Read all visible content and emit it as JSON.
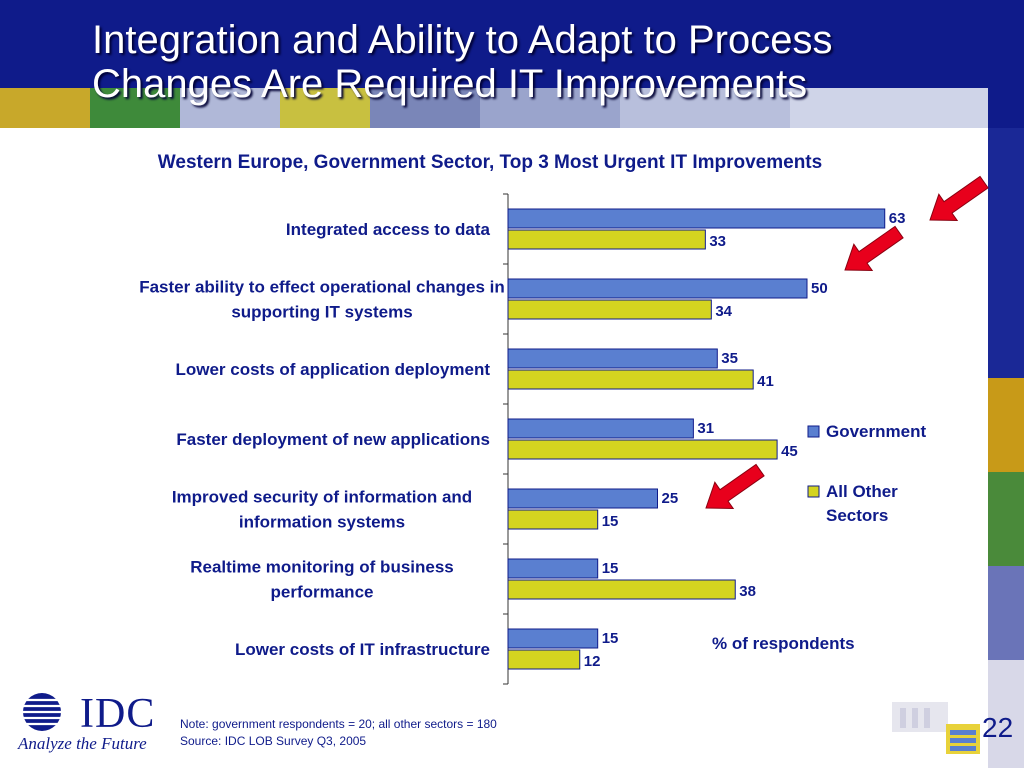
{
  "slide": {
    "title": "Integration and Ability to Adapt to Process Changes Are Required IT Improvements",
    "page_number": "22"
  },
  "chart_data": {
    "type": "bar",
    "orientation": "horizontal",
    "title": "Western Europe, Government Sector, Top 3 Most Urgent IT Improvements",
    "xlabel": "% of respondents",
    "categories": [
      [
        "Integrated access to data"
      ],
      [
        "Faster ability to effect operational changes in",
        "supporting IT systems"
      ],
      [
        "Lower costs of application deployment"
      ],
      [
        "Faster deployment of new applications"
      ],
      [
        "Improved security of information and",
        "information systems"
      ],
      [
        "Realtime monitoring of business",
        "performance"
      ],
      [
        "Lower costs of IT infrastructure"
      ]
    ],
    "series": [
      {
        "name": "Government",
        "color": "#5a7fd0",
        "values": [
          63,
          50,
          35,
          31,
          25,
          15,
          15
        ]
      },
      {
        "name": "All Other Sectors",
        "legend_lines": [
          "All Other",
          "Sectors"
        ],
        "color": "#d4d420",
        "values": [
          33,
          34,
          41,
          45,
          15,
          38,
          12
        ]
      }
    ],
    "highlighted_categories": [
      0,
      1,
      4
    ],
    "highlight_color": "#e8001c"
  },
  "footer": {
    "note": "Note: government respondents = 20; all other sectors = 180",
    "source": "Source: IDC LOB Survey Q3, 2005",
    "logo_text": "IDC",
    "logo_tagline": "Analyze the Future"
  }
}
